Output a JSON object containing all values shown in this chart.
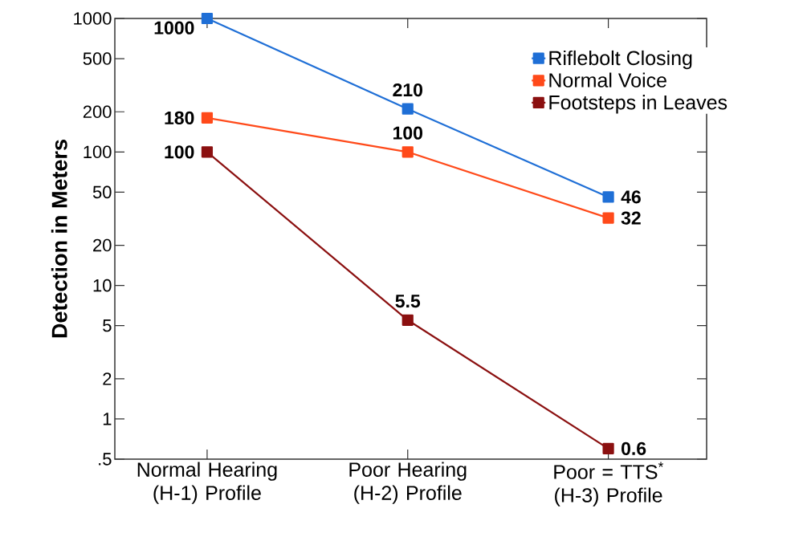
{
  "chart_data": {
    "type": "line",
    "ylabel": "Detection in Meters",
    "categories": [
      "Normal Hearing (H-1) Profile",
      "Poor Hearing (H-2) Profile",
      "Poor = TTS$^{*}$ (H-3) Profile"
    ],
    "series": [
      {
        "name": "Riflebolt Closing",
        "color": "#1f6fd6",
        "values": [
          1000,
          210,
          46
        ]
      },
      {
        "name": "Normal Voice",
        "color": "#ff4a1a",
        "values": [
          180,
          100,
          32
        ]
      },
      {
        "name": "Footsteps in Leaves",
        "color": "#8b1010",
        "values": [
          100,
          5.5,
          0.6
        ]
      }
    ],
    "log": "y",
    "ylim": [
      0.5,
      1000
    ],
    "yticks": [
      {
        "value": 0.5,
        "label": ".5"
      },
      1,
      2,
      5,
      10,
      20,
      50,
      100,
      200,
      500,
      1000
    ],
    "data_labels": true,
    "legend": "top right",
    "marker": "square",
    "line_style": "solid",
    "grid": false
  }
}
